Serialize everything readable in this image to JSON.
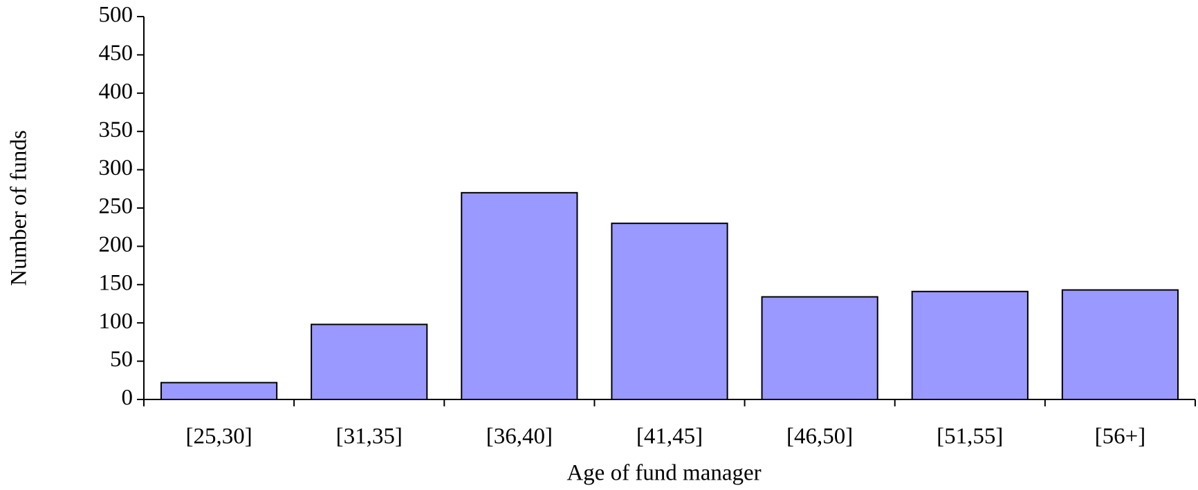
{
  "chart_data": {
    "type": "bar",
    "x_label": "Age of fund manager",
    "y_label": "Number of funds",
    "categories": [
      "[25,30]",
      "[31,35]",
      "[36,40]",
      "[41,45]",
      "[46,50]",
      "[51,55]",
      "[56+]"
    ],
    "values": [
      22,
      98,
      270,
      230,
      134,
      141,
      143
    ],
    "color": "#9999ff",
    "ylim": [
      0,
      500
    ],
    "yticks": [
      0,
      50,
      100,
      150,
      200,
      250,
      300,
      350,
      400,
      450,
      500
    ],
    "grid": false
  }
}
